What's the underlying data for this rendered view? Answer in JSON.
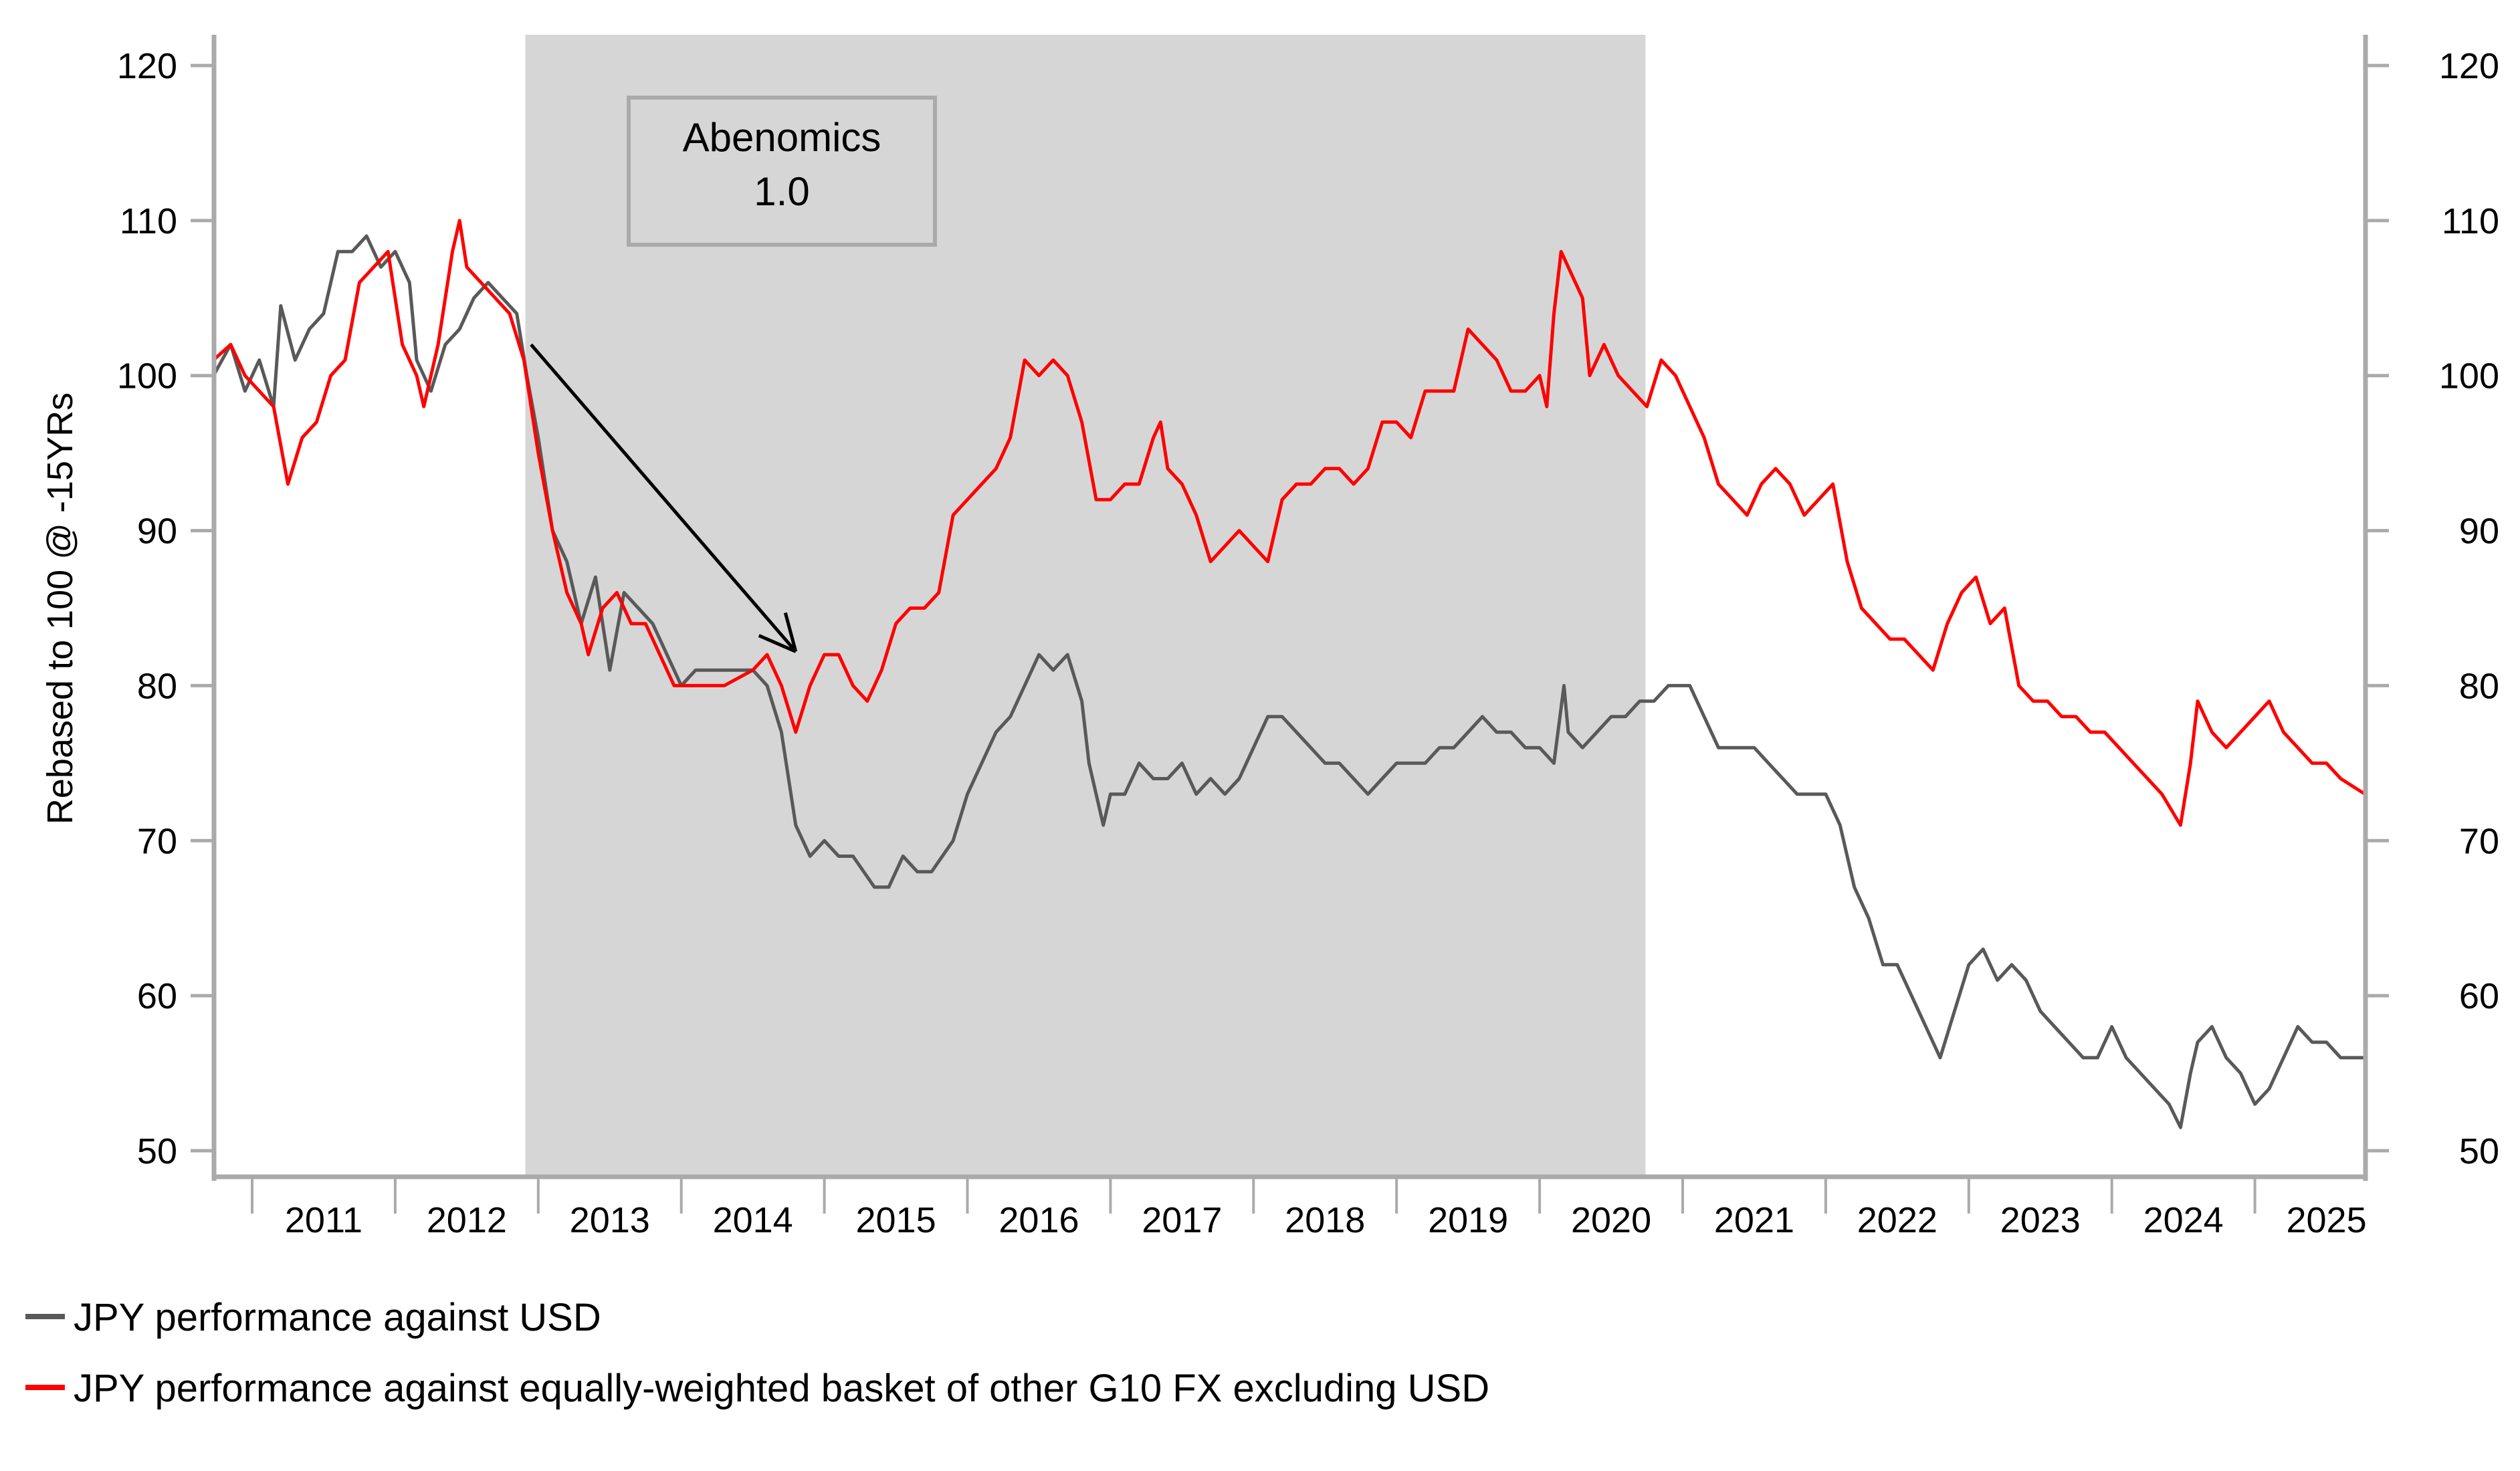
{
  "chart_data": {
    "type": "line",
    "title": "",
    "xlabel": "",
    "ylabel": "Rebased to 100 @ -15YRs",
    "ylabel_right": "",
    "xlim": [
      2010.73,
      2025.77
    ],
    "ylim": [
      48,
      122
    ],
    "yticks": [
      50,
      60,
      70,
      80,
      90,
      100,
      110,
      120
    ],
    "ytick_labels": [
      "50",
      "60",
      "70",
      "80",
      "90",
      "100",
      "110",
      "120"
    ],
    "xtick_labels": [
      "2011",
      "2012",
      "2013",
      "2014",
      "2015",
      "2016",
      "2017",
      "2018",
      "2019",
      "2020",
      "2021",
      "2022",
      "2023",
      "2024",
      "2025"
    ],
    "xtick_years": [
      2011,
      2012,
      2013,
      2014,
      2015,
      2016,
      2017,
      2018,
      2019,
      2020,
      2021,
      2022,
      2023,
      2024,
      2025
    ],
    "grid": false,
    "legend_position": "bottom-left",
    "shaded_region": {
      "x_start": 2012.91,
      "x_end": 2020.74,
      "color": "#d6d6d6"
    },
    "annotations": [
      {
        "type": "box",
        "lines": [
          "Abenomics",
          "1.0"
        ]
      },
      {
        "type": "arrow",
        "from": [
          2012.95,
          102
        ],
        "to": [
          2014.8,
          82.2
        ]
      }
    ],
    "series": [
      {
        "name": "JPY performance against USD",
        "color": "#595959",
        "x": [
          2010.73,
          2010.85,
          2010.95,
          2011.05,
          2011.15,
          2011.2,
          2011.3,
          2011.4,
          2011.5,
          2011.6,
          2011.7,
          2011.8,
          2011.9,
          2012.0,
          2012.1,
          2012.15,
          2012.25,
          2012.35,
          2012.45,
          2012.55,
          2012.65,
          2012.75,
          2012.85,
          2012.92,
          2013.0,
          2013.1,
          2013.2,
          2013.3,
          2013.4,
          2013.5,
          2013.6,
          2013.7,
          2013.8,
          2013.9,
          2014.0,
          2014.1,
          2014.2,
          2014.3,
          2014.4,
          2014.5,
          2014.6,
          2014.7,
          2014.8,
          2014.9,
          2015.0,
          2015.1,
          2015.2,
          2015.35,
          2015.45,
          2015.55,
          2015.65,
          2015.75,
          2015.9,
          2016.0,
          2016.1,
          2016.2,
          2016.3,
          2016.4,
          2016.5,
          2016.6,
          2016.7,
          2016.8,
          2016.85,
          2016.95,
          2017.0,
          2017.1,
          2017.2,
          2017.3,
          2017.4,
          2017.5,
          2017.6,
          2017.7,
          2017.8,
          2017.9,
          2018.0,
          2018.1,
          2018.2,
          2018.3,
          2018.4,
          2018.5,
          2018.6,
          2018.7,
          2018.8,
          2018.9,
          2019.0,
          2019.1,
          2019.2,
          2019.3,
          2019.4,
          2019.5,
          2019.6,
          2019.7,
          2019.8,
          2019.9,
          2020.0,
          2020.1,
          2020.17,
          2020.2,
          2020.3,
          2020.4,
          2020.5,
          2020.6,
          2020.7,
          2020.8,
          2020.9,
          2021.0,
          2021.05,
          2021.15,
          2021.25,
          2021.4,
          2021.5,
          2021.6,
          2021.7,
          2021.8,
          2021.9,
          2022.0,
          2022.1,
          2022.2,
          2022.3,
          2022.4,
          2022.5,
          2022.6,
          2022.7,
          2022.8,
          2022.9,
          2023.0,
          2023.1,
          2023.2,
          2023.3,
          2023.4,
          2023.5,
          2023.6,
          2023.7,
          2023.8,
          2023.9,
          2024.0,
          2024.1,
          2024.2,
          2024.3,
          2024.4,
          2024.48,
          2024.55,
          2024.6,
          2024.7,
          2024.8,
          2024.9,
          2025.0,
          2025.1,
          2025.2,
          2025.3,
          2025.4,
          2025.5,
          2025.6,
          2025.77
        ],
        "values": [
          100,
          102,
          99,
          101,
          98,
          104.5,
          101,
          103,
          104,
          108,
          108,
          109,
          107,
          108,
          106,
          101,
          99,
          102,
          103,
          105,
          106,
          105,
          104,
          100,
          96,
          90,
          88,
          84,
          87,
          81,
          86,
          85,
          84,
          82,
          80,
          81,
          81,
          81,
          81,
          81,
          80,
          77,
          71,
          69,
          70,
          69,
          69,
          67,
          67,
          69,
          68,
          68,
          70,
          73,
          75,
          77,
          78,
          80,
          82,
          81,
          82,
          79,
          75,
          71,
          73,
          73,
          75,
          74,
          74,
          75,
          73,
          74,
          73,
          74,
          76,
          78,
          78,
          77,
          76,
          75,
          75,
          74,
          73,
          74,
          75,
          75,
          75,
          76,
          76,
          77,
          78,
          77,
          77,
          76,
          76,
          75,
          80,
          77,
          76,
          77,
          78,
          78,
          79,
          79,
          80,
          80,
          80,
          78,
          76,
          76,
          76,
          75,
          74,
          73,
          73,
          73,
          71,
          67,
          65,
          62,
          62,
          60,
          58,
          56,
          59,
          62,
          63,
          61,
          62,
          61,
          59,
          58,
          57,
          56,
          56,
          58,
          56,
          55,
          54,
          53,
          51.5,
          55,
          57,
          58,
          56,
          55,
          53,
          54,
          56,
          58,
          57,
          57,
          56,
          56
        ]
      },
      {
        "name": "JPY performance against equally-weighted basket of other G10 FX excluding USD",
        "color": "#ff0000",
        "x": [
          2010.73,
          2010.85,
          2010.95,
          2011.05,
          2011.15,
          2011.25,
          2011.35,
          2011.45,
          2011.55,
          2011.65,
          2011.75,
          2011.85,
          2011.95,
          2012.0,
          2012.05,
          2012.15,
          2012.2,
          2012.3,
          2012.4,
          2012.45,
          2012.5,
          2012.6,
          2012.7,
          2012.8,
          2012.9,
          2013.0,
          2013.1,
          2013.2,
          2013.3,
          2013.35,
          2013.45,
          2013.55,
          2013.65,
          2013.75,
          2013.85,
          2013.95,
          2014.1,
          2014.3,
          2014.5,
          2014.6,
          2014.7,
          2014.8,
          2014.9,
          2015.0,
          2015.1,
          2015.2,
          2015.3,
          2015.4,
          2015.5,
          2015.6,
          2015.7,
          2015.8,
          2015.9,
          2016.0,
          2016.1,
          2016.2,
          2016.3,
          2016.4,
          2016.5,
          2016.6,
          2016.7,
          2016.8,
          2016.9,
          2017.0,
          2017.1,
          2017.2,
          2017.3,
          2017.35,
          2017.4,
          2017.5,
          2017.6,
          2017.7,
          2017.8,
          2017.9,
          2018.0,
          2018.1,
          2018.2,
          2018.3,
          2018.4,
          2018.5,
          2018.6,
          2018.7,
          2018.8,
          2018.9,
          2019.0,
          2019.1,
          2019.2,
          2019.3,
          2019.4,
          2019.5,
          2019.6,
          2019.7,
          2019.8,
          2019.9,
          2020.0,
          2020.05,
          2020.1,
          2020.15,
          2020.2,
          2020.3,
          2020.35,
          2020.45,
          2020.55,
          2020.65,
          2020.75,
          2020.85,
          2020.95,
          2021.05,
          2021.15,
          2021.25,
          2021.35,
          2021.45,
          2021.55,
          2021.65,
          2021.75,
          2021.85,
          2021.95,
          2022.05,
          2022.15,
          2022.25,
          2022.35,
          2022.45,
          2022.55,
          2022.65,
          2022.75,
          2022.85,
          2022.95,
          2023.05,
          2023.15,
          2023.25,
          2023.35,
          2023.45,
          2023.55,
          2023.65,
          2023.75,
          2023.85,
          2023.95,
          2024.05,
          2024.15,
          2024.25,
          2024.35,
          2024.48,
          2024.55,
          2024.6,
          2024.7,
          2024.8,
          2024.9,
          2025.0,
          2025.1,
          2025.2,
          2025.3,
          2025.4,
          2025.5,
          2025.6,
          2025.77
        ],
        "values": [
          101,
          102,
          100,
          99,
          98,
          93,
          96,
          97,
          100,
          101,
          106,
          107,
          108,
          105,
          102,
          100,
          98,
          102,
          108,
          110,
          107,
          106,
          105,
          104,
          101,
          95,
          90,
          86,
          84,
          82,
          85,
          86,
          84,
          84,
          82,
          80,
          80,
          80,
          81,
          82,
          80,
          77,
          80,
          82,
          82,
          80,
          79,
          81,
          84,
          85,
          85,
          86,
          91,
          92,
          93,
          94,
          96,
          101,
          100,
          101,
          100,
          97,
          92,
          92,
          93,
          93,
          96,
          97,
          94,
          93,
          91,
          88,
          89,
          90,
          89,
          88,
          92,
          93,
          93,
          94,
          94,
          93,
          94,
          97,
          97,
          96,
          99,
          99,
          99,
          103,
          102,
          101,
          99,
          99,
          100,
          98,
          104,
          108,
          107,
          105,
          100,
          102,
          100,
          99,
          98,
          101,
          100,
          98,
          96,
          93,
          92,
          91,
          93,
          94,
          93,
          91,
          92,
          93,
          88,
          85,
          84,
          83,
          83,
          82,
          81,
          84,
          86,
          87,
          84,
          85,
          80,
          79,
          79,
          78,
          78,
          77,
          77,
          76,
          75,
          74,
          73,
          71,
          75,
          79,
          77,
          76,
          77,
          78,
          79,
          77,
          76,
          75,
          75,
          74,
          73
        ]
      }
    ]
  }
}
